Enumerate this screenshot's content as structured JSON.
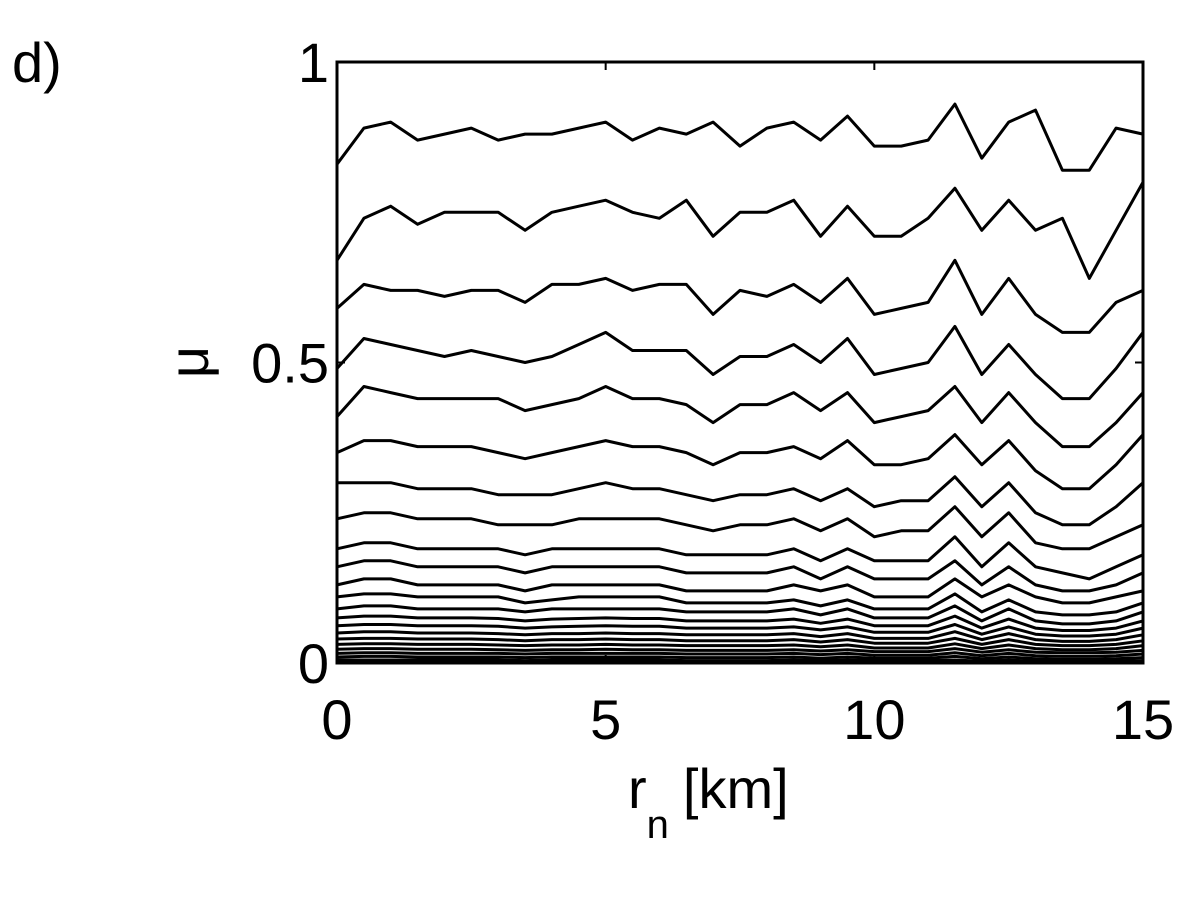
{
  "panel_label": "d)",
  "chart_data": {
    "type": "line",
    "title": "",
    "xlabel_main": "r",
    "xlabel_sub": "n",
    "xlabel_unit": "[km]",
    "ylabel": "μ",
    "xlim": [
      0,
      15
    ],
    "ylim": [
      0,
      1
    ],
    "xticks": [
      0,
      5,
      10,
      15
    ],
    "xtick_labels": [
      "0",
      "5",
      "10",
      "15"
    ],
    "yticks": [
      0,
      0.5,
      1
    ],
    "ytick_labels": [
      "0",
      "0.5",
      "1"
    ],
    "grid": false,
    "legend": "none",
    "line_color": "#000000",
    "x": [
      0.0,
      0.5,
      1.0,
      1.5,
      2.0,
      2.5,
      3.0,
      3.5,
      4.0,
      4.5,
      5.0,
      5.5,
      6.0,
      6.5,
      7.0,
      7.5,
      8.0,
      8.5,
      9.0,
      9.5,
      10.0,
      10.5,
      11.0,
      11.5,
      12.0,
      12.5,
      13.0,
      13.5,
      14.0,
      14.5,
      15.0
    ],
    "series": [
      {
        "values": [
          0.83,
          0.89,
          0.9,
          0.87,
          0.88,
          0.89,
          0.87,
          0.88,
          0.88,
          0.89,
          0.9,
          0.87,
          0.89,
          0.88,
          0.9,
          0.86,
          0.89,
          0.9,
          0.87,
          0.91,
          0.86,
          0.86,
          0.87,
          0.93,
          0.84,
          0.9,
          0.92,
          0.82,
          0.82,
          0.89,
          0.88
        ]
      },
      {
        "values": [
          0.67,
          0.74,
          0.76,
          0.73,
          0.75,
          0.75,
          0.75,
          0.72,
          0.75,
          0.76,
          0.77,
          0.75,
          0.74,
          0.77,
          0.71,
          0.75,
          0.75,
          0.77,
          0.71,
          0.76,
          0.71,
          0.71,
          0.74,
          0.79,
          0.72,
          0.77,
          0.72,
          0.74,
          0.64,
          0.72,
          0.8
        ]
      },
      {
        "values": [
          0.59,
          0.63,
          0.62,
          0.62,
          0.61,
          0.62,
          0.62,
          0.6,
          0.63,
          0.63,
          0.64,
          0.62,
          0.63,
          0.63,
          0.58,
          0.62,
          0.61,
          0.63,
          0.6,
          0.64,
          0.58,
          0.59,
          0.6,
          0.67,
          0.58,
          0.64,
          0.58,
          0.55,
          0.55,
          0.6,
          0.62
        ]
      },
      {
        "values": [
          0.49,
          0.54,
          0.53,
          0.52,
          0.51,
          0.52,
          0.51,
          0.5,
          0.51,
          0.53,
          0.55,
          0.52,
          0.52,
          0.52,
          0.48,
          0.51,
          0.51,
          0.53,
          0.5,
          0.54,
          0.48,
          0.49,
          0.5,
          0.56,
          0.48,
          0.53,
          0.48,
          0.44,
          0.44,
          0.49,
          0.55
        ]
      },
      {
        "values": [
          0.41,
          0.46,
          0.45,
          0.44,
          0.44,
          0.44,
          0.44,
          0.42,
          0.43,
          0.44,
          0.46,
          0.44,
          0.44,
          0.43,
          0.4,
          0.43,
          0.43,
          0.45,
          0.42,
          0.45,
          0.4,
          0.41,
          0.42,
          0.46,
          0.4,
          0.45,
          0.4,
          0.36,
          0.36,
          0.4,
          0.45
        ]
      },
      {
        "values": [
          0.35,
          0.37,
          0.37,
          0.36,
          0.36,
          0.36,
          0.35,
          0.34,
          0.35,
          0.36,
          0.37,
          0.36,
          0.36,
          0.35,
          0.33,
          0.35,
          0.35,
          0.36,
          0.34,
          0.37,
          0.33,
          0.33,
          0.34,
          0.38,
          0.33,
          0.37,
          0.32,
          0.29,
          0.29,
          0.33,
          0.38
        ]
      },
      {
        "values": [
          0.3,
          0.3,
          0.3,
          0.29,
          0.29,
          0.29,
          0.28,
          0.28,
          0.28,
          0.29,
          0.3,
          0.29,
          0.29,
          0.28,
          0.27,
          0.28,
          0.28,
          0.29,
          0.27,
          0.29,
          0.26,
          0.27,
          0.27,
          0.31,
          0.26,
          0.3,
          0.25,
          0.23,
          0.23,
          0.26,
          0.3
        ]
      },
      {
        "values": [
          0.24,
          0.25,
          0.25,
          0.24,
          0.24,
          0.24,
          0.23,
          0.23,
          0.23,
          0.24,
          0.24,
          0.24,
          0.24,
          0.23,
          0.22,
          0.23,
          0.23,
          0.24,
          0.22,
          0.24,
          0.21,
          0.22,
          0.22,
          0.26,
          0.21,
          0.25,
          0.2,
          0.19,
          0.19,
          0.21,
          0.23
        ]
      },
      {
        "values": [
          0.19,
          0.2,
          0.2,
          0.19,
          0.19,
          0.19,
          0.19,
          0.18,
          0.19,
          0.19,
          0.19,
          0.19,
          0.19,
          0.18,
          0.18,
          0.18,
          0.18,
          0.19,
          0.17,
          0.19,
          0.17,
          0.17,
          0.17,
          0.21,
          0.16,
          0.2,
          0.16,
          0.15,
          0.14,
          0.16,
          0.18
        ]
      },
      {
        "values": [
          0.16,
          0.17,
          0.17,
          0.16,
          0.16,
          0.16,
          0.16,
          0.15,
          0.16,
          0.16,
          0.16,
          0.16,
          0.16,
          0.15,
          0.15,
          0.15,
          0.15,
          0.16,
          0.14,
          0.16,
          0.14,
          0.14,
          0.14,
          0.17,
          0.13,
          0.16,
          0.13,
          0.12,
          0.12,
          0.13,
          0.15
        ]
      },
      {
        "values": [
          0.13,
          0.14,
          0.14,
          0.13,
          0.13,
          0.13,
          0.13,
          0.12,
          0.13,
          0.13,
          0.13,
          0.13,
          0.13,
          0.12,
          0.12,
          0.12,
          0.12,
          0.13,
          0.12,
          0.13,
          0.11,
          0.11,
          0.11,
          0.14,
          0.11,
          0.13,
          0.11,
          0.1,
          0.1,
          0.11,
          0.12
        ]
      },
      {
        "values": [
          0.11,
          0.115,
          0.115,
          0.11,
          0.11,
          0.11,
          0.11,
          0.1,
          0.105,
          0.11,
          0.11,
          0.11,
          0.11,
          0.1,
          0.1,
          0.1,
          0.1,
          0.105,
          0.095,
          0.105,
          0.09,
          0.09,
          0.09,
          0.115,
          0.085,
          0.105,
          0.085,
          0.08,
          0.08,
          0.085,
          0.1
        ]
      },
      {
        "values": [
          0.09,
          0.095,
          0.095,
          0.09,
          0.09,
          0.09,
          0.09,
          0.085,
          0.09,
          0.09,
          0.09,
          0.09,
          0.09,
          0.085,
          0.085,
          0.085,
          0.085,
          0.09,
          0.08,
          0.09,
          0.075,
          0.075,
          0.075,
          0.095,
          0.07,
          0.09,
          0.07,
          0.065,
          0.065,
          0.07,
          0.085
        ]
      },
      {
        "values": [
          0.075,
          0.078,
          0.078,
          0.075,
          0.075,
          0.075,
          0.074,
          0.07,
          0.073,
          0.074,
          0.075,
          0.074,
          0.074,
          0.07,
          0.07,
          0.07,
          0.07,
          0.073,
          0.066,
          0.073,
          0.062,
          0.062,
          0.062,
          0.078,
          0.058,
          0.073,
          0.058,
          0.054,
          0.054,
          0.058,
          0.07
        ]
      },
      {
        "values": [
          0.062,
          0.064,
          0.064,
          0.062,
          0.062,
          0.062,
          0.061,
          0.058,
          0.06,
          0.061,
          0.062,
          0.061,
          0.061,
          0.058,
          0.058,
          0.058,
          0.058,
          0.06,
          0.055,
          0.06,
          0.051,
          0.051,
          0.051,
          0.064,
          0.048,
          0.06,
          0.048,
          0.045,
          0.045,
          0.048,
          0.058
        ]
      },
      {
        "values": [
          0.05,
          0.052,
          0.052,
          0.05,
          0.05,
          0.05,
          0.049,
          0.047,
          0.049,
          0.049,
          0.05,
          0.049,
          0.049,
          0.047,
          0.047,
          0.047,
          0.047,
          0.049,
          0.044,
          0.049,
          0.041,
          0.041,
          0.041,
          0.052,
          0.039,
          0.049,
          0.039,
          0.036,
          0.036,
          0.039,
          0.047
        ]
      },
      {
        "values": [
          0.04,
          0.041,
          0.041,
          0.04,
          0.04,
          0.04,
          0.039,
          0.037,
          0.039,
          0.039,
          0.04,
          0.039,
          0.039,
          0.037,
          0.037,
          0.037,
          0.037,
          0.039,
          0.035,
          0.039,
          0.033,
          0.033,
          0.033,
          0.041,
          0.031,
          0.039,
          0.031,
          0.029,
          0.029,
          0.031,
          0.037
        ]
      },
      {
        "values": [
          0.031,
          0.032,
          0.032,
          0.031,
          0.031,
          0.031,
          0.03,
          0.029,
          0.03,
          0.03,
          0.031,
          0.03,
          0.03,
          0.029,
          0.029,
          0.029,
          0.029,
          0.03,
          0.027,
          0.03,
          0.025,
          0.025,
          0.025,
          0.032,
          0.024,
          0.03,
          0.024,
          0.022,
          0.022,
          0.024,
          0.029
        ]
      },
      {
        "values": [
          0.023,
          0.024,
          0.024,
          0.023,
          0.023,
          0.023,
          0.022,
          0.021,
          0.022,
          0.022,
          0.023,
          0.022,
          0.022,
          0.021,
          0.021,
          0.021,
          0.021,
          0.022,
          0.02,
          0.022,
          0.019,
          0.019,
          0.019,
          0.024,
          0.018,
          0.022,
          0.018,
          0.017,
          0.017,
          0.018,
          0.021
        ]
      },
      {
        "values": [
          0.016,
          0.017,
          0.017,
          0.016,
          0.016,
          0.016,
          0.016,
          0.015,
          0.016,
          0.016,
          0.016,
          0.016,
          0.016,
          0.015,
          0.015,
          0.015,
          0.015,
          0.016,
          0.014,
          0.016,
          0.013,
          0.013,
          0.013,
          0.017,
          0.012,
          0.016,
          0.012,
          0.011,
          0.011,
          0.012,
          0.015
        ]
      },
      {
        "values": [
          0.01,
          0.011,
          0.011,
          0.01,
          0.01,
          0.01,
          0.01,
          0.009,
          0.01,
          0.01,
          0.01,
          0.01,
          0.01,
          0.009,
          0.009,
          0.009,
          0.009,
          0.01,
          0.008,
          0.01,
          0.008,
          0.008,
          0.008,
          0.011,
          0.007,
          0.01,
          0.007,
          0.006,
          0.006,
          0.007,
          0.009
        ]
      },
      {
        "values": [
          0.005,
          0.005,
          0.005,
          0.005,
          0.005,
          0.005,
          0.005,
          0.004,
          0.005,
          0.005,
          0.005,
          0.005,
          0.005,
          0.004,
          0.004,
          0.004,
          0.004,
          0.005,
          0.004,
          0.005,
          0.004,
          0.004,
          0.004,
          0.005,
          0.003,
          0.005,
          0.003,
          0.003,
          0.003,
          0.003,
          0.004
        ]
      }
    ]
  }
}
